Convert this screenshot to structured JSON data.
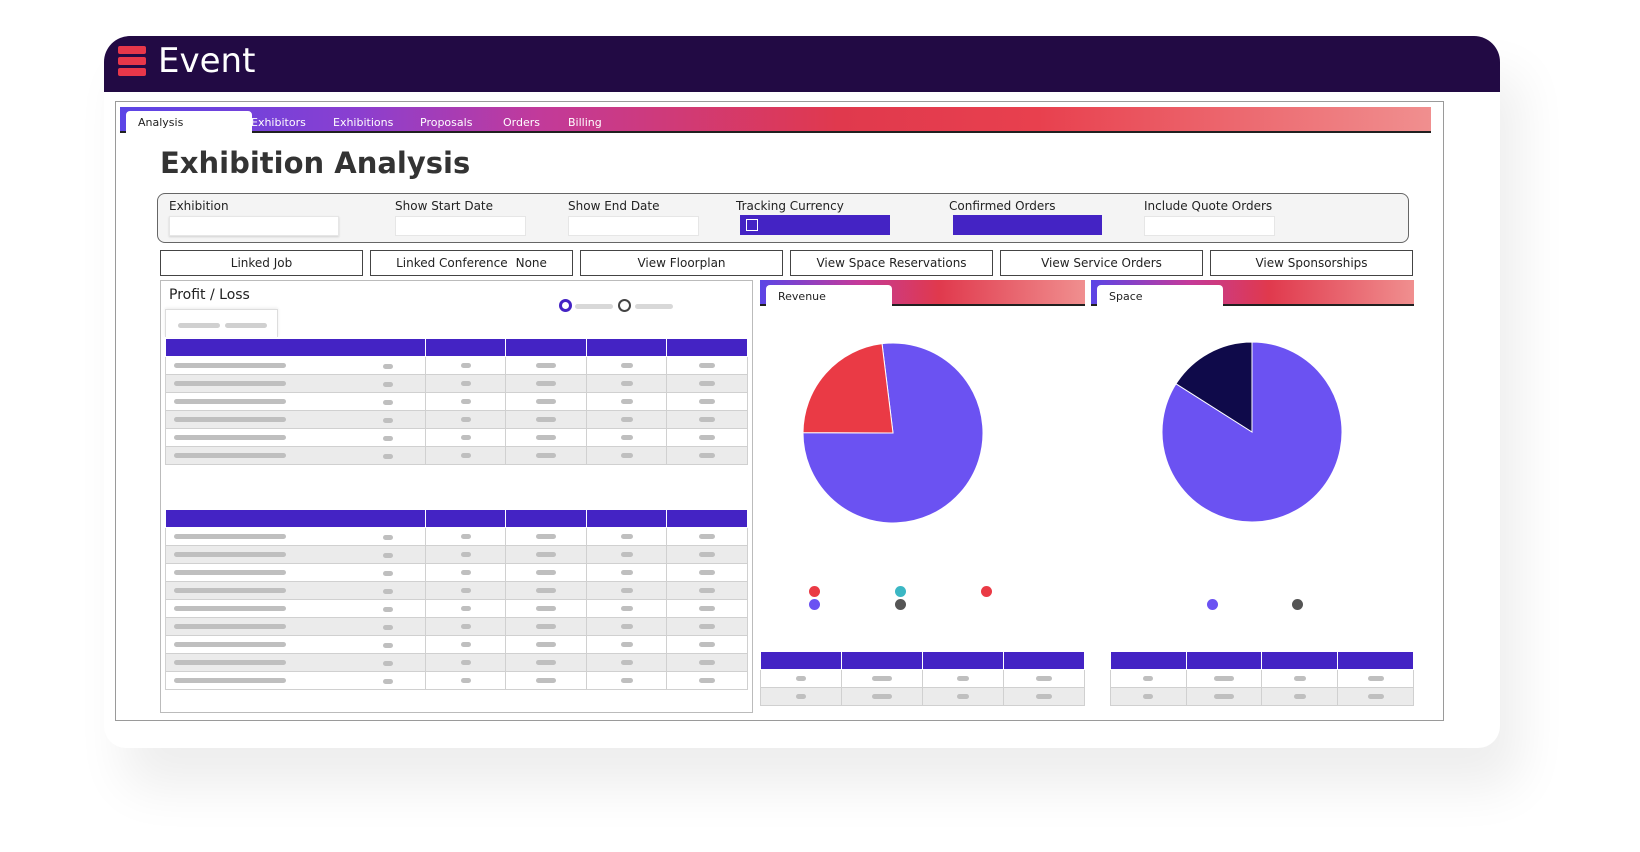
{
  "app": {
    "title": "Event",
    "brand_color": "#e8374a",
    "header_color": "#220a44"
  },
  "tabs": [
    {
      "label": "Analysis",
      "active": true
    },
    {
      "label": "Exhibitors"
    },
    {
      "label": "Exhibitions"
    },
    {
      "label": "Proposals"
    },
    {
      "label": "Orders"
    },
    {
      "label": "Billing"
    }
  ],
  "page_title": "Exhibition Analysis",
  "filters": {
    "exhibition": {
      "label": "Exhibition",
      "value": ""
    },
    "show_start_date": {
      "label": "Show Start Date",
      "value": ""
    },
    "show_end_date": {
      "label": "Show End Date",
      "value": ""
    },
    "tracking_currency": {
      "label": "Tracking Currency",
      "checked": false
    },
    "confirmed_orders": {
      "label": "Confirmed Orders"
    },
    "include_quote_orders": {
      "label": "Include Quote Orders",
      "value": ""
    }
  },
  "actions": {
    "linked_job": "Linked Job",
    "linked_conference": "Linked Conference",
    "linked_conference_value": "None",
    "view_floorplan": "View Floorplan",
    "view_space_reservations": "View Space Reservations",
    "view_service_orders": "View Service Orders",
    "view_sponsorships": "View Sponsorships"
  },
  "profit_loss": {
    "title": "Profit / Loss"
  },
  "colors": {
    "accent": "#4423c4",
    "pie_primary": "#6b52f2",
    "pie_red": "#ea3a45",
    "pie_navy": "#0f0a4a",
    "teal": "#3bb7c4",
    "grey": "#555555"
  },
  "chart_data": [
    {
      "type": "pie",
      "title": "Revenue",
      "values": [
        77,
        23
      ],
      "colors": [
        "#6b52f2",
        "#ea3a45"
      ]
    },
    {
      "type": "pie",
      "title": "Space",
      "values": [
        84,
        16
      ],
      "colors": [
        "#6b52f2",
        "#0f0a4a"
      ]
    }
  ]
}
